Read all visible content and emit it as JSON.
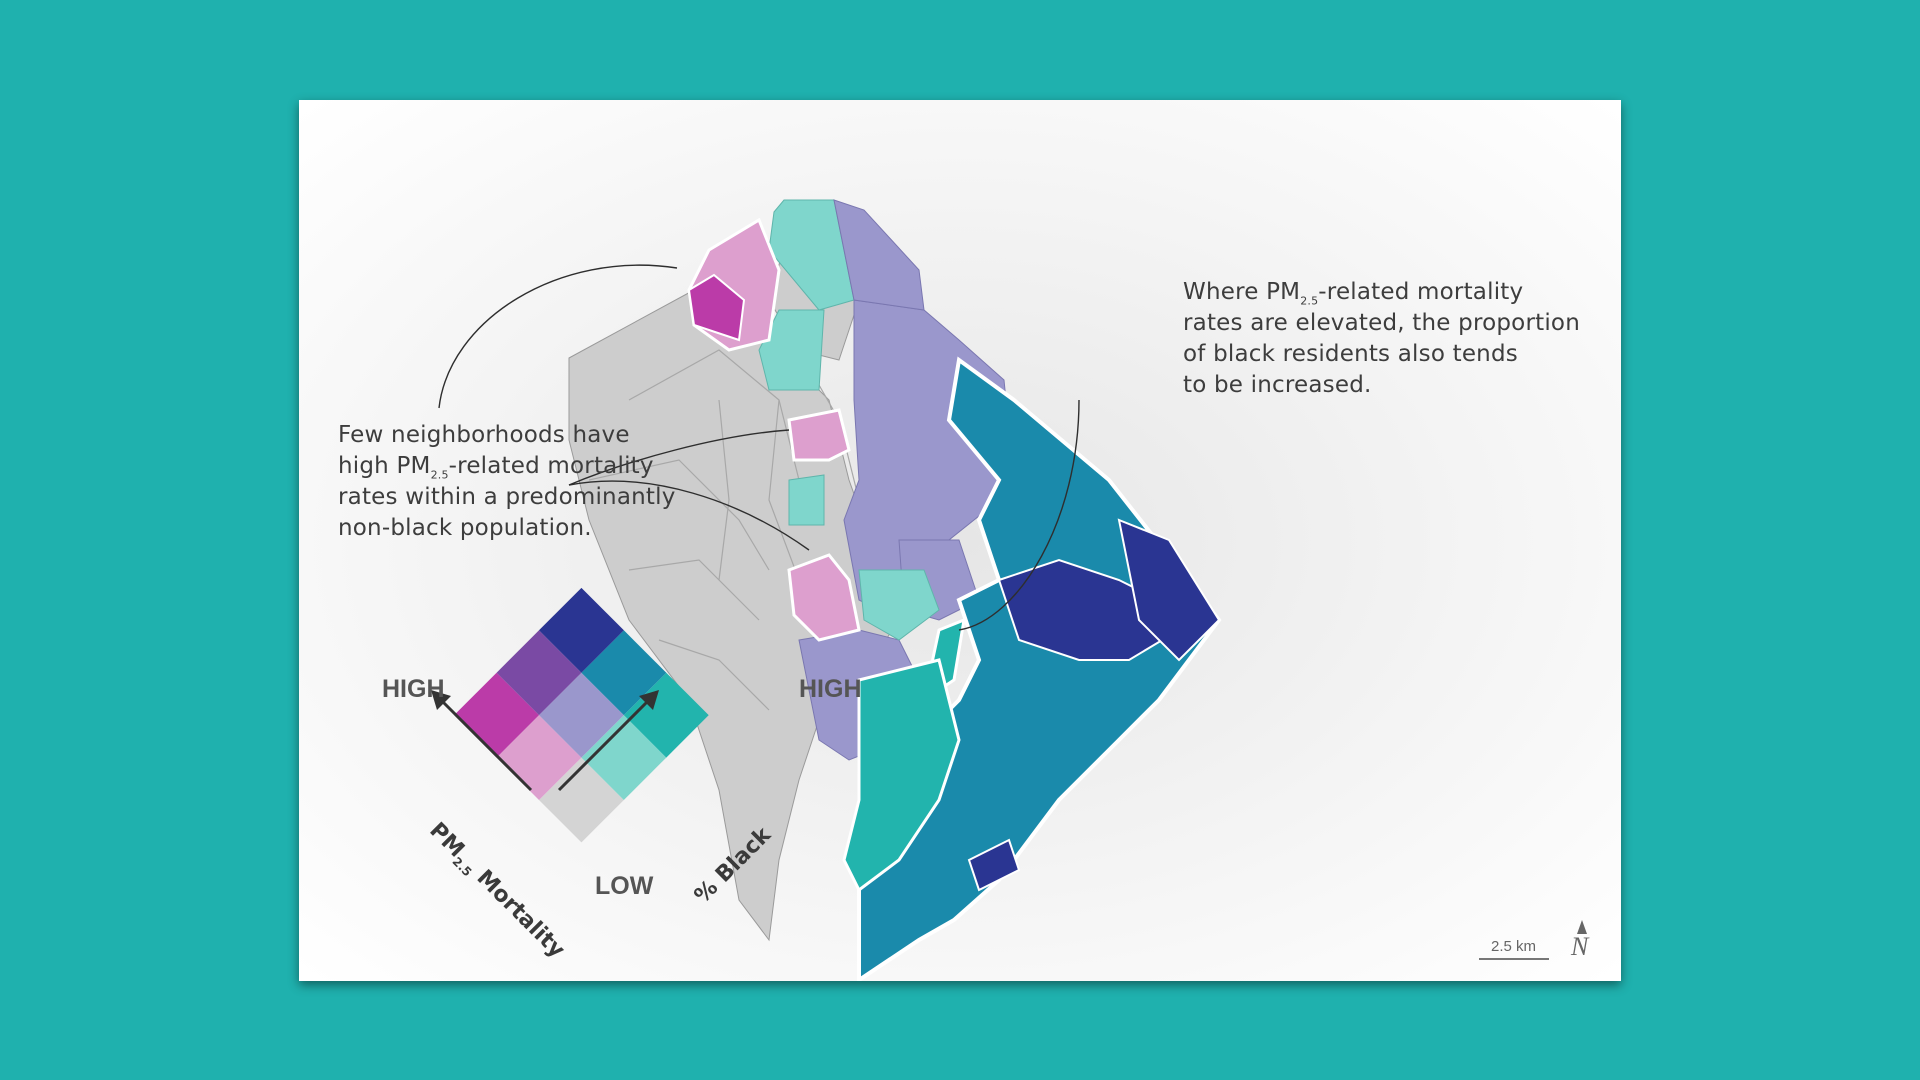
{
  "annotations": {
    "left": {
      "line1": "Few neighborhoods have",
      "line2_pre": "high PM",
      "line2_sub": "2.5",
      "line2_post": "-related mortality",
      "line3": "rates within a predominantly",
      "line4": "non-black population."
    },
    "right": {
      "line1_pre": "Where PM",
      "line1_sub": "2.5",
      "line1_post": "-related mortality",
      "line2": "rates are elevated, the proportion",
      "line3": "of black residents also tends",
      "line4": "to be increased."
    }
  },
  "legend": {
    "high_left": "HIGH",
    "high_right": "HIGH",
    "low": "LOW",
    "axis_pm_pre": "PM",
    "axis_pm_sub": "2.5",
    "axis_pm_post": " Mortality",
    "axis_black": "% Black",
    "colors": {
      "low_low": "#d4d4d4",
      "low_pm_mid_black": "#7fd6cc",
      "low_pm_high_black": "#22b4ad",
      "mid_pm_low_black": "#dd9fce",
      "mid_pm_mid_black": "#9a97cc",
      "mid_pm_high_black": "#1a8aab",
      "high_pm_low_black": "#bb3ba8",
      "high_pm_mid_black": "#7a4aa4",
      "high_pm_high_black": "#2a3592"
    }
  },
  "scale_bar": {
    "label": "2.5 km"
  },
  "north_arrow": {
    "label": "N",
    "icon": "north-arrow-icon"
  }
}
